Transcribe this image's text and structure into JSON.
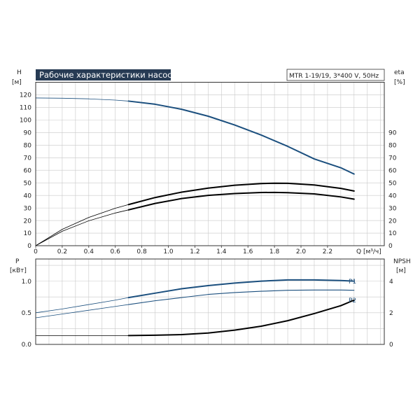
{
  "colors": {
    "grid": "#c8c8c8",
    "frame": "#333333",
    "accent": "#1b4f7e",
    "black": "#000000",
    "title_bg": "#273b54"
  },
  "header": {
    "title": "Рабочие характеристики насоса",
    "pump_info": "MTR 1-19/19, 3*400 V, 50Hz"
  },
  "chart_data": [
    {
      "type": "line",
      "panel": "top",
      "x_axis": {
        "label": "Q [м³/ч]",
        "range": [
          0,
          2.6
        ],
        "ticks": [
          "0",
          "0.2",
          "0.4",
          "0.6",
          "0.8",
          "1.0",
          "1.2",
          "1.4",
          "1.6",
          "1.8",
          "2.0",
          "2.2"
        ],
        "minor_step": 0.1
      },
      "y_axis_left": {
        "label_line1": "H",
        "label_line2": "[м]",
        "range": [
          0,
          130
        ],
        "ticks": [
          "0",
          "10",
          "20",
          "30",
          "40",
          "50",
          "60",
          "70",
          "80",
          "90",
          "100",
          "110",
          "120"
        ]
      },
      "y_axis_right": {
        "label_line1": "eta",
        "label_line2": "[%]",
        "range": [
          0,
          130
        ],
        "ticks": [
          "0",
          "10",
          "20",
          "30",
          "40",
          "50",
          "60",
          "70",
          "80",
          "90"
        ]
      },
      "grid": true,
      "series": [
        {
          "color_key": "accent",
          "ext_x": [
            0,
            0.2,
            0.4,
            0.6,
            0.7
          ],
          "ext_y": [
            117.5,
            117.3,
            116.8,
            115.8,
            115.0
          ],
          "main_x": [
            0.7,
            0.9,
            1.1,
            1.3,
            1.5,
            1.7,
            1.9,
            2.1,
            2.3,
            2.4
          ],
          "main_y": [
            115.0,
            112.5,
            108.5,
            103.0,
            96.0,
            88.0,
            79.0,
            69.0,
            62.0,
            57.0
          ]
        },
        {
          "color_key": "black",
          "ext_x": [
            0,
            0.2,
            0.4,
            0.6,
            0.7
          ],
          "ext_y": [
            0,
            13.0,
            22.5,
            29.8,
            32.7
          ],
          "main_x": [
            0.7,
            0.9,
            1.1,
            1.3,
            1.5,
            1.7,
            1.8,
            1.9,
            2.1,
            2.3,
            2.4
          ],
          "main_y": [
            32.7,
            38.3,
            42.6,
            45.8,
            48.1,
            49.4,
            49.7,
            49.6,
            48.3,
            45.6,
            43.5
          ]
        },
        {
          "color_key": "black",
          "ext_x": [
            0,
            0.2,
            0.4,
            0.6,
            0.7
          ],
          "ext_y": [
            0,
            11.5,
            19.8,
            26.0,
            28.5
          ],
          "main_x": [
            0.7,
            0.9,
            1.1,
            1.3,
            1.5,
            1.7,
            1.8,
            1.9,
            2.1,
            2.3,
            2.4
          ],
          "main_y": [
            28.5,
            33.6,
            37.5,
            40.0,
            41.5,
            42.3,
            42.4,
            42.2,
            41.2,
            38.8,
            37.0
          ]
        }
      ]
    },
    {
      "type": "line",
      "panel": "bottom",
      "x_axis": {
        "range": [
          0,
          2.6
        ],
        "minor_step": 0.1
      },
      "y_axis_left": {
        "label_line1": "P",
        "label_line2": "[кВт]",
        "range": [
          0,
          1.35
        ],
        "ticks": [
          "0.0",
          "0.5",
          "1.0"
        ]
      },
      "y_axis_right": {
        "label_line1": "NPSH",
        "label_line2": "[м]",
        "range": [
          0,
          5.4
        ],
        "ticks": [
          "0",
          "2",
          "4"
        ]
      },
      "grid": true,
      "series": [
        {
          "name": "P1",
          "color_key": "accent",
          "ext_x": [
            0,
            0.2,
            0.4,
            0.6,
            0.7
          ],
          "ext_y": [
            0.5,
            0.56,
            0.63,
            0.7,
            0.74
          ],
          "main_x": [
            0.7,
            0.9,
            1.1,
            1.3,
            1.5,
            1.7,
            1.9,
            2.1,
            2.3,
            2.4
          ],
          "main_y": [
            0.74,
            0.81,
            0.88,
            0.93,
            0.97,
            1.0,
            1.02,
            1.02,
            1.01,
            1.0
          ]
        },
        {
          "name": "P2",
          "color_key": "accent",
          "ext_x": [
            0,
            0.2,
            0.4,
            0.6,
            0.7
          ],
          "ext_y": [
            0.42,
            0.48,
            0.54,
            0.6,
            0.63
          ],
          "main_x": [
            0.7,
            0.9,
            1.1,
            1.3,
            1.5,
            1.7,
            1.9,
            2.1,
            2.3,
            2.4
          ],
          "main_y": [
            0.63,
            0.69,
            0.74,
            0.79,
            0.82,
            0.84,
            0.855,
            0.86,
            0.86,
            0.855
          ],
          "thin": true
        },
        {
          "color_key": "black",
          "axis": "right",
          "ext_x": [
            0,
            0.2,
            0.4,
            0.6,
            0.7
          ],
          "ext_y": [
            0.56,
            0.56,
            0.56,
            0.56,
            0.56
          ],
          "main_x": [
            0.7,
            0.9,
            1.1,
            1.3,
            1.5,
            1.7,
            1.9,
            2.1,
            2.3,
            2.4
          ],
          "main_y": [
            0.56,
            0.58,
            0.62,
            0.72,
            0.9,
            1.15,
            1.5,
            1.95,
            2.45,
            2.8
          ]
        }
      ]
    }
  ]
}
